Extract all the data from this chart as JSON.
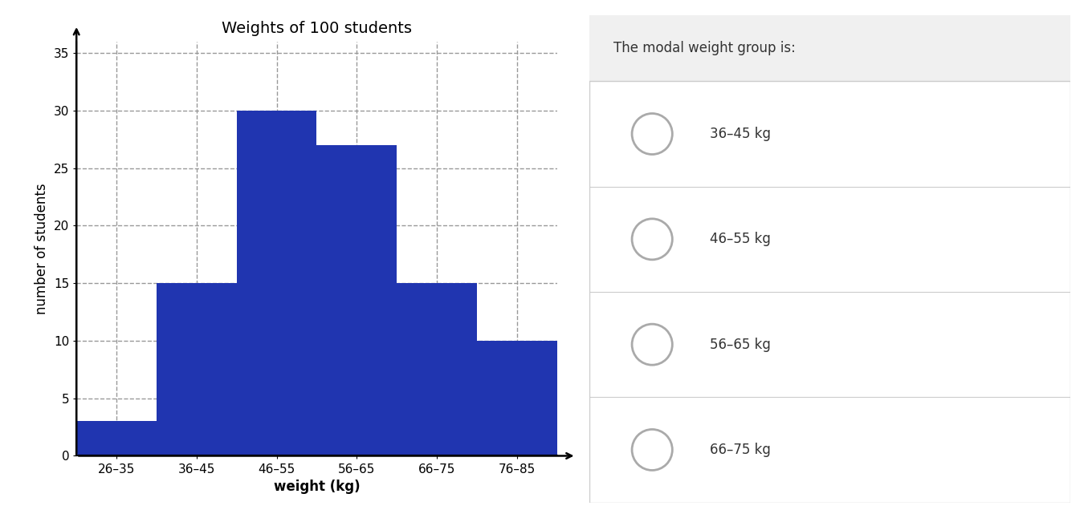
{
  "title": "Weights of 100 students",
  "xlabel": "weight (kg)",
  "ylabel": "number of students",
  "categories": [
    "26–35",
    "36–45",
    "46–55",
    "56–65",
    "66–75",
    "76–85"
  ],
  "values": [
    3,
    15,
    30,
    27,
    15,
    10
  ],
  "bar_color": "#2035b0",
  "ylim": [
    0,
    36
  ],
  "yticks": [
    0,
    5,
    10,
    15,
    20,
    25,
    30,
    35
  ],
  "grid_color": "#999999",
  "grid_linestyle": "--",
  "title_fontsize": 14,
  "axis_label_fontsize": 12,
  "tick_fontsize": 11,
  "question_text": "The modal weight group is:",
  "options": [
    "36–45 kg",
    "46–55 kg",
    "56–65 kg",
    "66–75 kg"
  ],
  "panel_bg": "#f0f0f0",
  "divider_color": "#cccccc",
  "circle_color": "#aaaaaa",
  "text_color": "#333333"
}
